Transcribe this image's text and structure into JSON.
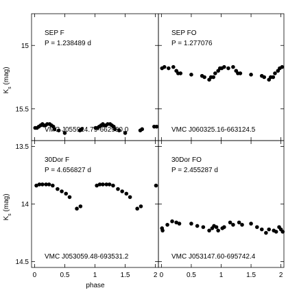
{
  "chart_data": [
    {
      "type": "scatter",
      "label": "SEP F",
      "period": "P = 1.238489 d",
      "star_id": "VMC J055924.79-662930.0",
      "xlim": [
        -0.05,
        2.05
      ],
      "ylim": [
        15.75,
        14.75
      ],
      "yticks": [
        15,
        15.5
      ],
      "ytick_labels": [
        "15",
        "15.5"
      ],
      "points": [
        [
          0.01,
          15.65
        ],
        [
          0.04,
          15.65
        ],
        [
          0.07,
          15.64
        ],
        [
          0.1,
          15.63
        ],
        [
          0.13,
          15.62
        ],
        [
          0.15,
          15.63
        ],
        [
          0.18,
          15.63
        ],
        [
          0.21,
          15.62
        ],
        [
          0.25,
          15.62
        ],
        [
          0.28,
          15.63
        ],
        [
          0.31,
          15.64
        ],
        [
          0.33,
          15.66
        ],
        [
          0.4,
          15.67
        ],
        [
          0.5,
          15.69
        ],
        [
          0.75,
          15.67
        ],
        [
          0.78,
          15.66
        ],
        [
          1.01,
          15.65
        ],
        [
          1.04,
          15.65
        ],
        [
          1.07,
          15.64
        ],
        [
          1.1,
          15.63
        ],
        [
          1.13,
          15.62
        ],
        [
          1.15,
          15.63
        ],
        [
          1.18,
          15.63
        ],
        [
          1.21,
          15.62
        ],
        [
          1.25,
          15.62
        ],
        [
          1.28,
          15.63
        ],
        [
          1.31,
          15.64
        ],
        [
          1.33,
          15.66
        ],
        [
          1.4,
          15.67
        ],
        [
          1.5,
          15.69
        ],
        [
          1.75,
          15.67
        ],
        [
          1.78,
          15.66
        ],
        [
          1.98,
          15.64
        ],
        [
          2.02,
          15.64
        ]
      ]
    },
    {
      "type": "scatter",
      "label": "SEP FO",
      "period": "P = 1.277076",
      "star_id": "VMC J060325.16-663124.5",
      "xlim": [
        -0.05,
        2.05
      ],
      "ylim": [
        15.75,
        14.75
      ],
      "yticks": [
        15,
        15.5
      ],
      "ytick_labels": [
        "",
        ""
      ],
      "points": [
        [
          0.01,
          15.18
        ],
        [
          0.05,
          15.17
        ],
        [
          0.12,
          15.18
        ],
        [
          0.2,
          15.17
        ],
        [
          0.25,
          15.2
        ],
        [
          0.28,
          15.22
        ],
        [
          0.32,
          15.22
        ],
        [
          0.5,
          15.23
        ],
        [
          0.68,
          15.24
        ],
        [
          0.72,
          15.25
        ],
        [
          0.8,
          15.27
        ],
        [
          0.83,
          15.25
        ],
        [
          0.87,
          15.25
        ],
        [
          0.9,
          15.22
        ],
        [
          0.95,
          15.2
        ],
        [
          0.98,
          15.18
        ],
        [
          1.01,
          15.18
        ],
        [
          1.05,
          15.17
        ],
        [
          1.12,
          15.18
        ],
        [
          1.2,
          15.17
        ],
        [
          1.25,
          15.2
        ],
        [
          1.28,
          15.22
        ],
        [
          1.32,
          15.22
        ],
        [
          1.5,
          15.23
        ],
        [
          1.68,
          15.24
        ],
        [
          1.72,
          15.25
        ],
        [
          1.8,
          15.27
        ],
        [
          1.83,
          15.25
        ],
        [
          1.87,
          15.25
        ],
        [
          1.9,
          15.22
        ],
        [
          1.95,
          15.2
        ],
        [
          1.98,
          15.18
        ],
        [
          2.02,
          15.17
        ]
      ]
    },
    {
      "type": "scatter",
      "label": "30Dor F",
      "period": "P = 4.656827 d",
      "star_id": "VMC J053059.48-693531.2",
      "xlim": [
        -0.05,
        2.05
      ],
      "ylim": [
        14.55,
        13.45
      ],
      "yticks": [
        13.5,
        14,
        14.5
      ],
      "ytick_labels": [
        "13.5",
        "14",
        "14.5"
      ],
      "points": [
        [
          0.03,
          13.84
        ],
        [
          0.08,
          13.83
        ],
        [
          0.13,
          13.83
        ],
        [
          0.19,
          13.83
        ],
        [
          0.24,
          13.83
        ],
        [
          0.3,
          13.84
        ],
        [
          0.38,
          13.87
        ],
        [
          0.45,
          13.89
        ],
        [
          0.52,
          13.91
        ],
        [
          0.58,
          13.94
        ],
        [
          0.7,
          14.04
        ],
        [
          0.76,
          14.02
        ],
        [
          1.03,
          13.84
        ],
        [
          1.08,
          13.83
        ],
        [
          1.13,
          13.83
        ],
        [
          1.19,
          13.83
        ],
        [
          1.24,
          13.83
        ],
        [
          1.3,
          13.84
        ],
        [
          1.38,
          13.87
        ],
        [
          1.45,
          13.89
        ],
        [
          1.52,
          13.91
        ],
        [
          1.58,
          13.94
        ],
        [
          1.7,
          14.04
        ],
        [
          1.76,
          14.02
        ],
        [
          2.01,
          13.84
        ]
      ]
    },
    {
      "type": "scatter",
      "label": "30Dor FO",
      "period": "P = 2.455287 d",
      "star_id": "VMC J053147.60-695742.4",
      "xlim": [
        -0.05,
        2.05
      ],
      "ylim": [
        14.55,
        13.45
      ],
      "yticks": [
        13.5,
        14,
        14.5
      ],
      "ytick_labels": [
        "",
        "",
        ""
      ],
      "points": [
        [
          0.01,
          14.21
        ],
        [
          0.02,
          14.23
        ],
        [
          0.1,
          14.18
        ],
        [
          0.18,
          14.15
        ],
        [
          0.25,
          14.16
        ],
        [
          0.3,
          14.17
        ],
        [
          0.5,
          14.17
        ],
        [
          0.6,
          14.19
        ],
        [
          0.7,
          14.2
        ],
        [
          0.8,
          14.23
        ],
        [
          0.85,
          14.21
        ],
        [
          0.88,
          14.19
        ],
        [
          0.92,
          14.2
        ],
        [
          0.95,
          14.23
        ],
        [
          1.02,
          14.21
        ],
        [
          1.05,
          14.2
        ],
        [
          1.15,
          14.16
        ],
        [
          1.2,
          14.18
        ],
        [
          1.3,
          14.16
        ],
        [
          1.35,
          14.18
        ],
        [
          1.5,
          14.17
        ],
        [
          1.6,
          14.2
        ],
        [
          1.68,
          14.22
        ],
        [
          1.75,
          14.25
        ],
        [
          1.8,
          14.22
        ],
        [
          1.88,
          14.23
        ],
        [
          1.92,
          14.24
        ],
        [
          1.97,
          14.2
        ],
        [
          2.0,
          14.22
        ],
        [
          2.03,
          14.24
        ]
      ]
    }
  ],
  "axes": {
    "xlabel": "phase",
    "ylabel_main": "K",
    "ylabel_sub": "s",
    "ylabel_unit": " (mag)",
    "xticks": [
      0,
      0.5,
      1,
      1.5,
      2
    ],
    "xtick_labels": [
      "0",
      "0.5",
      "1",
      "1.5",
      "2"
    ]
  }
}
